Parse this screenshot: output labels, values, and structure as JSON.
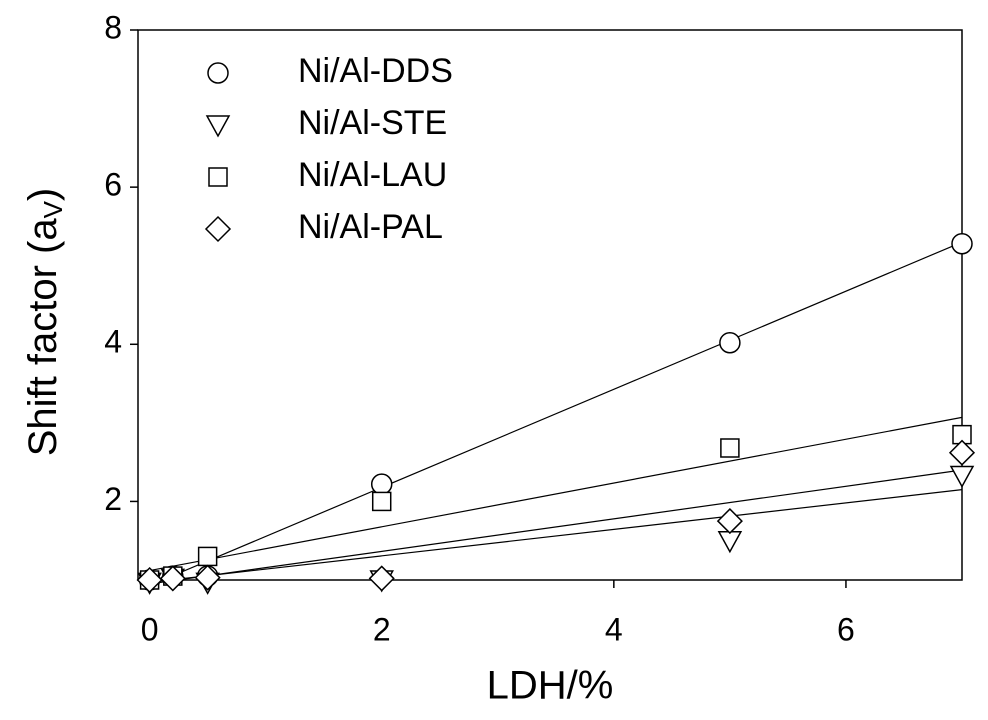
{
  "chart_data": {
    "type": "scatter",
    "xlabel": "LDH/%",
    "ylabel": [
      "Shift factor (a",
      "V",
      ")"
    ],
    "xlim": [
      -0.1,
      7
    ],
    "ylim": [
      1,
      8
    ],
    "xticks": [
      0,
      2,
      4,
      6
    ],
    "yticks": [
      2,
      4,
      6,
      8
    ],
    "x": [
      0,
      0.2,
      0.5,
      2,
      5,
      7
    ],
    "fit_x": [
      0,
      7
    ],
    "legend": "upper left",
    "color": "#000000",
    "series": [
      {
        "name": "Ni/Al-DDS",
        "marker": "circle",
        "values": [
          1.0,
          1.05,
          1.05,
          2.22,
          4.02,
          5.28
        ],
        "fit": [
          0.93,
          5.3
        ]
      },
      {
        "name": "Ni/Al-STE",
        "marker": "triangle-down",
        "values": [
          0.97,
          1.02,
          0.97,
          1.0,
          1.5,
          2.33
        ],
        "fit": [
          0.95,
          2.4
        ]
      },
      {
        "name": "Ni/Al-LAU",
        "marker": "square",
        "values": [
          1.0,
          1.05,
          1.3,
          2.0,
          2.68,
          2.85
        ],
        "fit": [
          1.12,
          3.07
        ]
      },
      {
        "name": "Ni/Al-PAL",
        "marker": "diamond",
        "values": [
          1.0,
          1.02,
          1.03,
          1.02,
          1.75,
          2.62
        ],
        "fit": [
          0.97,
          2.15
        ]
      }
    ]
  }
}
